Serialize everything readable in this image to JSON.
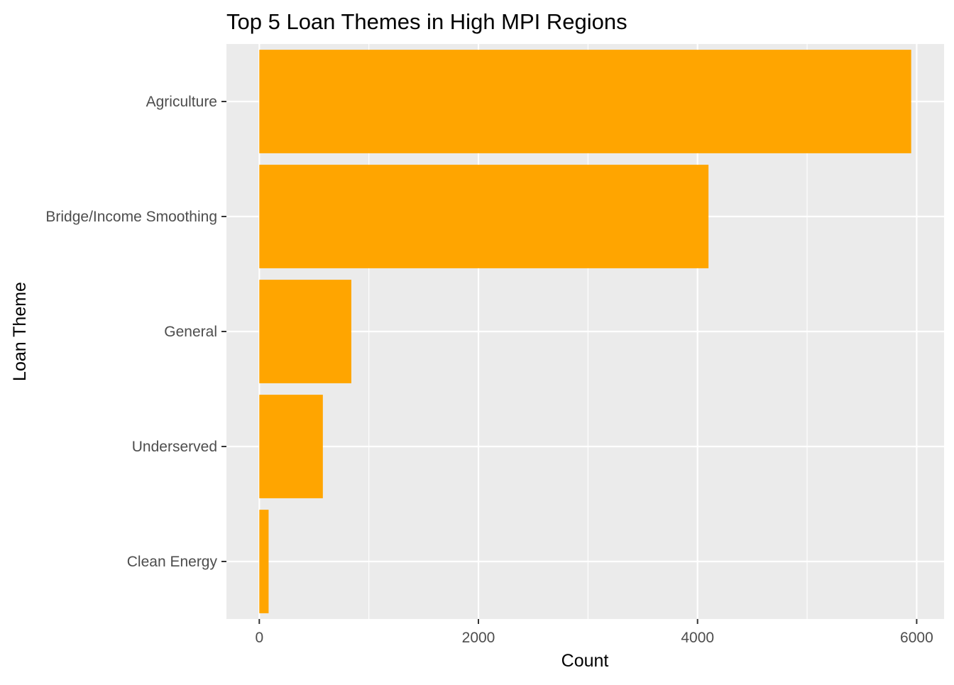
{
  "chart_data": {
    "type": "bar",
    "orientation": "horizontal",
    "title": "Top 5 Loan Themes in High MPI Regions",
    "xlabel": "Count",
    "ylabel": "Loan Theme",
    "categories": [
      "Agriculture",
      "Bridge/Income Smoothing",
      "General",
      "Underserved",
      "Clean Energy"
    ],
    "values": [
      5950,
      4100,
      840,
      580,
      85
    ],
    "xlim": [
      -300,
      6250
    ],
    "x_ticks": [
      0,
      2000,
      4000,
      6000
    ],
    "x_tick_labels": [
      "0",
      "2000",
      "4000",
      "6000"
    ],
    "grid": true,
    "legend": "none",
    "colors": {
      "bar": "#FFA500",
      "panel": "#EBEBEB",
      "grid": "#FFFFFF"
    }
  }
}
